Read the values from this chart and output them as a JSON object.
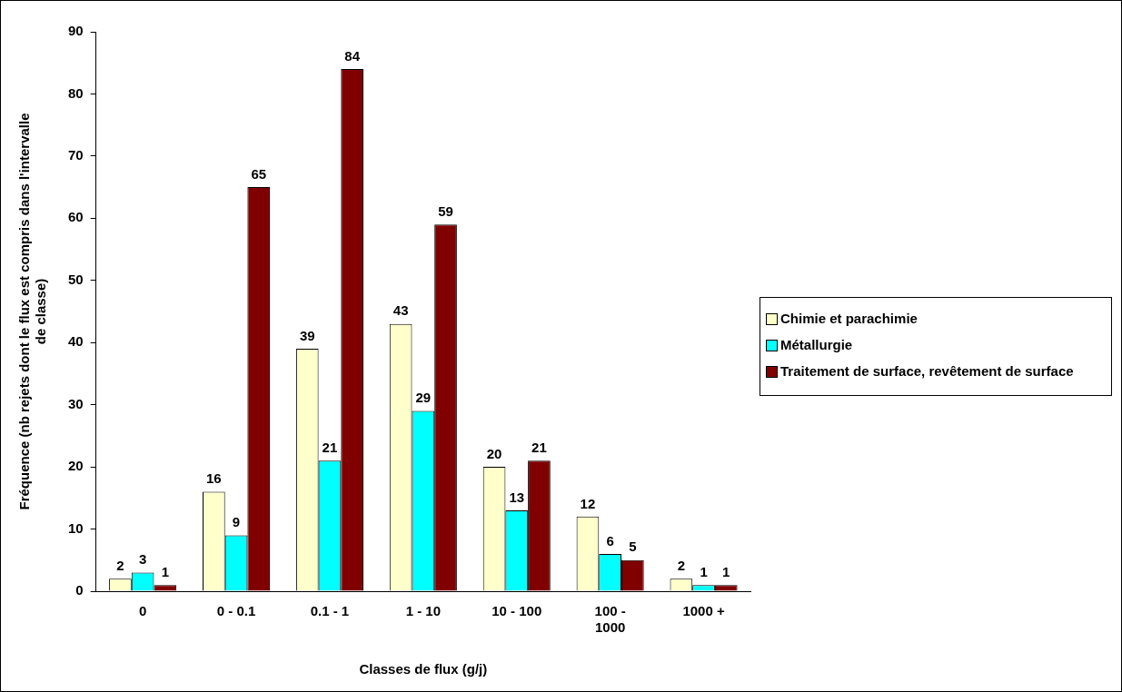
{
  "chart_data": {
    "type": "bar",
    "xlabel": "Classes de flux (g/j)",
    "ylabel": "Fréquence (nb rejets dont le flux est compris dans l'intervalle de classe)",
    "categories": [
      "0",
      "0 - 0.1",
      "0.1 - 1",
      "1 - 10",
      "10 - 100",
      "100 - 1000",
      "1000 +"
    ],
    "series": [
      {
        "name": "Chimie et parachimie",
        "color": "#ffffcc",
        "values": [
          2,
          16,
          39,
          43,
          20,
          12,
          2
        ]
      },
      {
        "name": "Métallurgie",
        "color": "#00ffff",
        "values": [
          3,
          9,
          21,
          29,
          13,
          6,
          1
        ]
      },
      {
        "name": "Traitement de surface, revêtement de surface",
        "color": "#800000",
        "values": [
          1,
          65,
          84,
          59,
          21,
          5,
          1
        ]
      }
    ],
    "ylim": [
      0,
      90
    ],
    "yticks": [
      0,
      10,
      20,
      30,
      40,
      50,
      60,
      70,
      80,
      90
    ],
    "grid": false,
    "legend": "right",
    "data_labels": true
  }
}
